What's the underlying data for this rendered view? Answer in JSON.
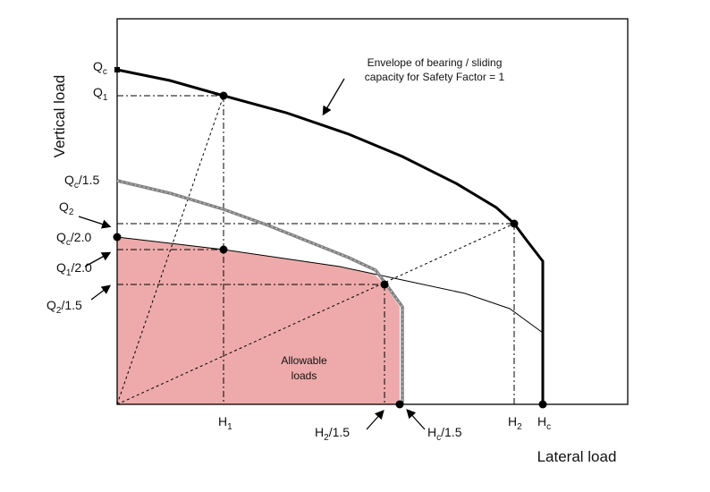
{
  "axes": {
    "x_title": "Lateral load",
    "y_title": "Vertical load"
  },
  "annotations": {
    "envelope_line1": "Envelope of bearing / sliding",
    "envelope_line2": "capacity for Safety Factor = 1",
    "allowable_line1": "Allowable",
    "allowable_line2": "loads"
  },
  "y_labels": {
    "qc": {
      "main": "Q",
      "sub": "c",
      "tail": ""
    },
    "q1": {
      "main": "Q",
      "sub": "1",
      "tail": ""
    },
    "qc15": {
      "main": "Q",
      "sub": "c",
      "tail": "/1.5"
    },
    "q2": {
      "main": "Q",
      "sub": "2",
      "tail": ""
    },
    "qc20": {
      "main": "Q",
      "sub": "c",
      "tail": "/2.0"
    },
    "q120": {
      "main": "Q",
      "sub": "1",
      "tail": "/2.0"
    },
    "q215": {
      "main": "Q",
      "sub": "2",
      "tail": "/1.5"
    }
  },
  "x_labels": {
    "h1": {
      "main": "H",
      "sub": "1",
      "tail": ""
    },
    "h215": {
      "main": "H",
      "sub": "2",
      "tail": "/1.5"
    },
    "hc15": {
      "main": "H",
      "sub": "c",
      "tail": "/1.5"
    },
    "h2": {
      "main": "H",
      "sub": "2",
      "tail": ""
    },
    "hc": {
      "main": "H",
      "sub": "c",
      "tail": ""
    }
  },
  "colors": {
    "allowable_fill": "#eeaaaa",
    "line": "#000000",
    "reduced_envelope": "#808080"
  }
}
